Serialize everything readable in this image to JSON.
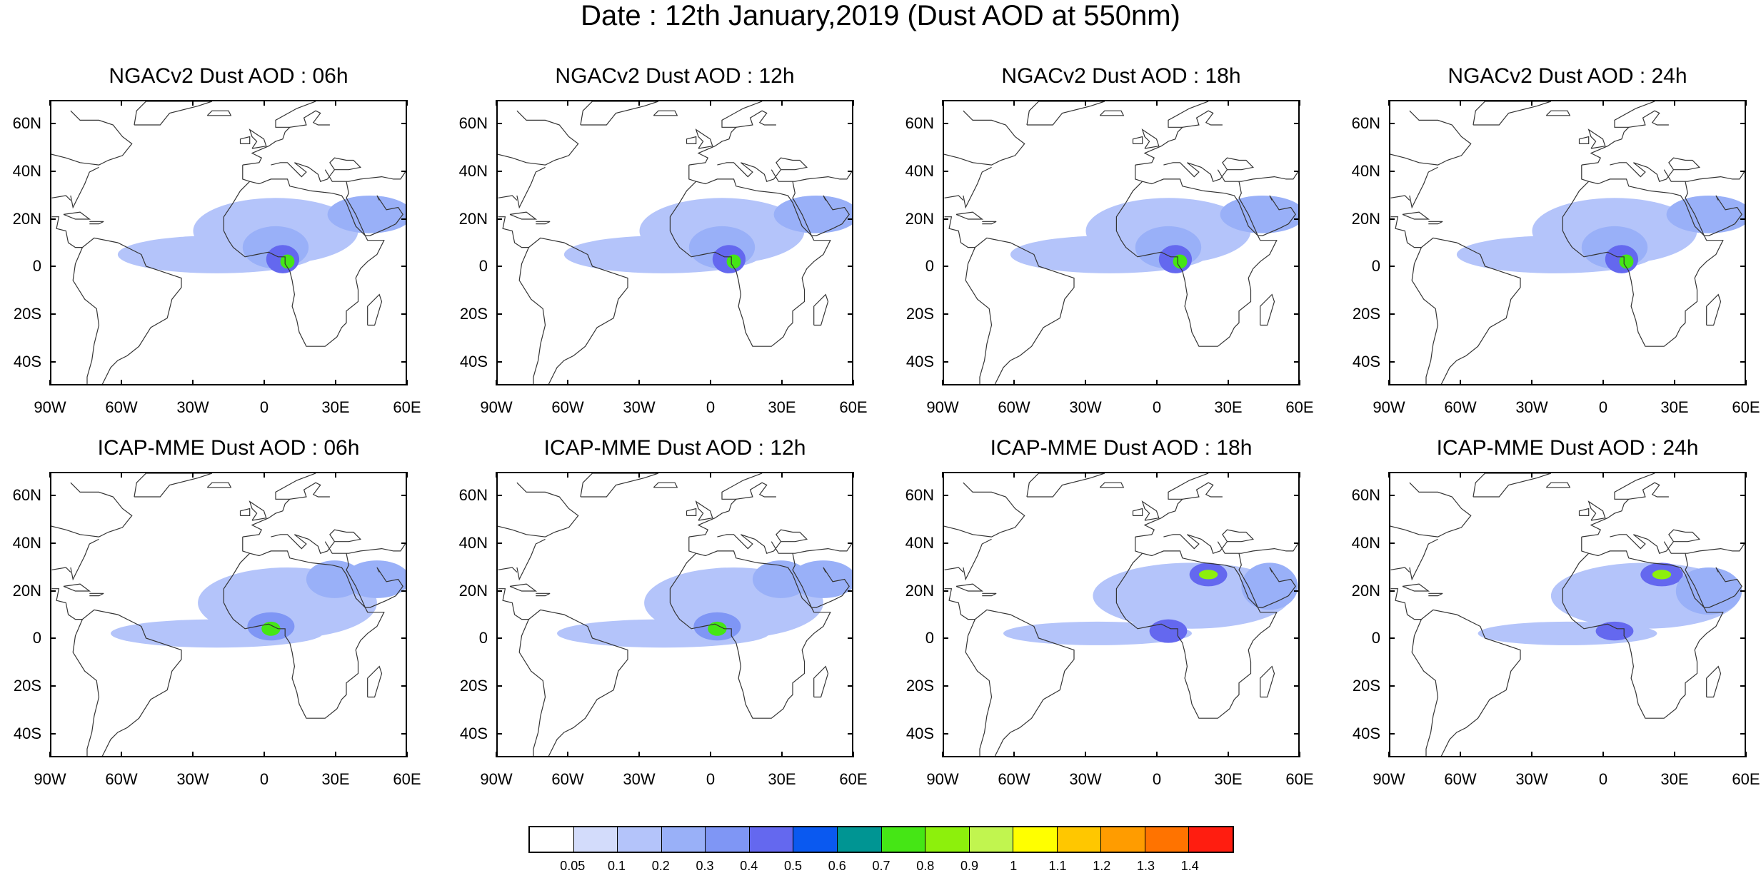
{
  "title": "Date : 12th January,2019 (Dust AOD at 550nm)",
  "lat_labels": [
    "60N",
    "40N",
    "20N",
    "0",
    "20S",
    "40S"
  ],
  "lon_labels": [
    "90W",
    "60W",
    "30W",
    "0",
    "30E",
    "60E"
  ],
  "panels": [
    {
      "title": "NGACv2 Dust AOD : 06h"
    },
    {
      "title": "NGACv2 Dust AOD : 12h"
    },
    {
      "title": "NGACv2 Dust AOD : 18h"
    },
    {
      "title": "NGACv2 Dust AOD : 24h"
    },
    {
      "title": "ICAP-MME Dust AOD : 06h"
    },
    {
      "title": "ICAP-MME Dust AOD : 12h"
    },
    {
      "title": "ICAP-MME Dust AOD : 18h"
    },
    {
      "title": "ICAP-MME Dust AOD : 24h"
    }
  ],
  "colorbar": {
    "labels": [
      "0.05",
      "0.1",
      "0.2",
      "0.3",
      "0.4",
      "0.5",
      "0.6",
      "0.7",
      "0.8",
      "0.9",
      "1",
      "1.1",
      "1.2",
      "1.3",
      "1.4"
    ],
    "colors": [
      "#ffffff",
      "#d3dcfb",
      "#b4c4fa",
      "#99b0f8",
      "#7f96f5",
      "#6468ef",
      "#0a59f0",
      "#009593",
      "#45e615",
      "#8df00c",
      "#c1f54f",
      "#ffff00",
      "#ffc700",
      "#ff9c00",
      "#ff7300",
      "#ff1d10"
    ]
  }
}
